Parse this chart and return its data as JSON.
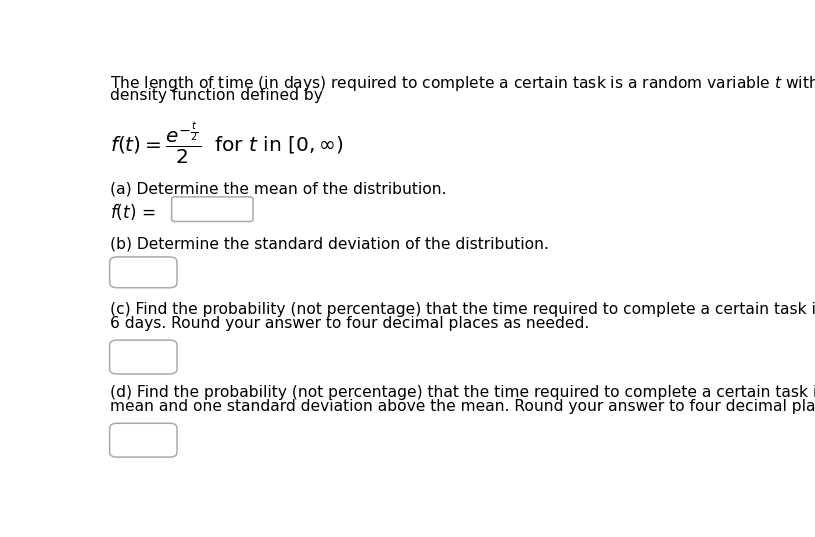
{
  "bg_color": "#ffffff",
  "text_color": "#000000",
  "font_family": "DejaVu Sans",
  "intro_line1": "The length of time (in days) required to complete a certain task is a random variable $t$ with probability",
  "intro_line2": "density function defined by",
  "formula": "$f(t) = \\dfrac{e^{-\\frac{t}{2}}}{2}$  for $t$ in $[0, \\infty)$",
  "part_a_label": "(a) Determine the mean of the distribution.",
  "part_b_label": "(b) Determine the standard deviation of the distribution.",
  "part_c_label_line1": "(c) Find the probability (not percentage) that the time required to complete a certain task is no more than",
  "part_c_label_line2": "6 days. Round your answer to four decimal places as needed.",
  "part_d_label_line1": "(d) Find the probability (not percentage) that the time required to complete a certain task is between the",
  "part_d_label_line2": "mean and one standard deviation above the mean. Round your answer to four decimal places as needed.",
  "fs_main": 11.2,
  "fs_formula": 14.5
}
